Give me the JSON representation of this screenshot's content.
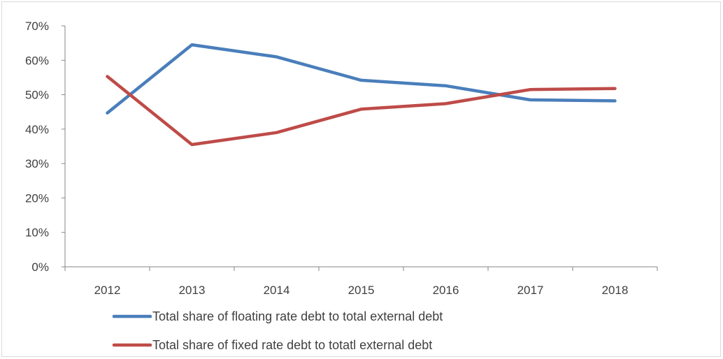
{
  "chart_data": {
    "type": "line",
    "title": "",
    "xlabel": "",
    "ylabel": "",
    "categories": [
      "2012",
      "2013",
      "2014",
      "2015",
      "2016",
      "2017",
      "2018"
    ],
    "ylim": [
      0,
      70
    ],
    "y_ticks": [
      0,
      10,
      20,
      30,
      40,
      50,
      60,
      70
    ],
    "y_tick_labels": [
      "0%",
      "10%",
      "20%",
      "30%",
      "40%",
      "50%",
      "60%",
      "70%"
    ],
    "grid": false,
    "legend_position": "bottom",
    "series": [
      {
        "name": "Total share of floating rate debt to total external debt",
        "color": "#4a7ebb",
        "values": [
          44.7,
          64.5,
          61.0,
          54.2,
          52.6,
          48.5,
          48.2
        ]
      },
      {
        "name": "Total share of fixed rate debt to totatl external debt",
        "color": "#be4b48",
        "values": [
          55.3,
          35.5,
          39.0,
          45.8,
          47.4,
          51.5,
          51.8
        ]
      }
    ]
  }
}
